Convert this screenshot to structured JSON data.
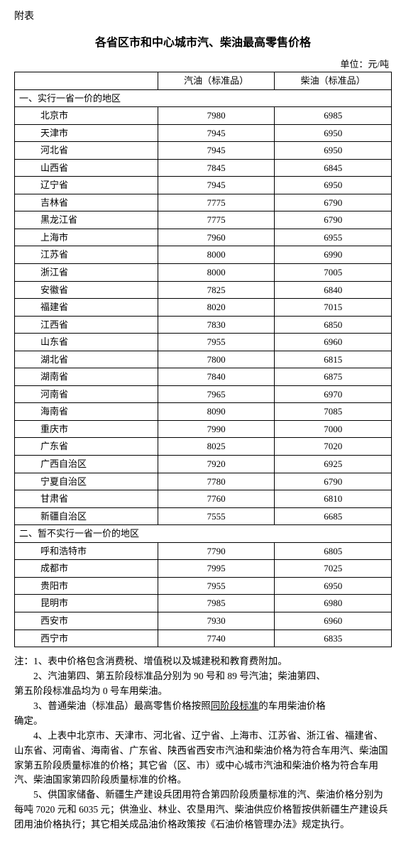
{
  "pre_title": "附表",
  "title": "各省区市和中心城市汽、柴油最高零售价格",
  "unit": "单位：元/吨",
  "columns": {
    "region": "",
    "gas": "汽油（标准品）",
    "diesel": "柴油（标准品）"
  },
  "section1": {
    "header": "一、实行一省一价的地区",
    "rows": [
      {
        "region": "北京市",
        "gas": "7980",
        "diesel": "6985"
      },
      {
        "region": "天津市",
        "gas": "7945",
        "diesel": "6950"
      },
      {
        "region": "河北省",
        "gas": "7945",
        "diesel": "6950"
      },
      {
        "region": "山西省",
        "gas": "7845",
        "diesel": "6845"
      },
      {
        "region": "辽宁省",
        "gas": "7945",
        "diesel": "6950"
      },
      {
        "region": "吉林省",
        "gas": "7775",
        "diesel": "6790"
      },
      {
        "region": "黑龙江省",
        "gas": "7775",
        "diesel": "6790"
      },
      {
        "region": "上海市",
        "gas": "7960",
        "diesel": "6955"
      },
      {
        "region": "江苏省",
        "gas": "8000",
        "diesel": "6990"
      },
      {
        "region": "浙江省",
        "gas": "8000",
        "diesel": "7005"
      },
      {
        "region": "安徽省",
        "gas": "7825",
        "diesel": "6840"
      },
      {
        "region": "福建省",
        "gas": "8020",
        "diesel": "7015"
      },
      {
        "region": "江西省",
        "gas": "7830",
        "diesel": "6850"
      },
      {
        "region": "山东省",
        "gas": "7955",
        "diesel": "6960"
      },
      {
        "region": "湖北省",
        "gas": "7800",
        "diesel": "6815"
      },
      {
        "region": "湖南省",
        "gas": "7840",
        "diesel": "6875"
      },
      {
        "region": "河南省",
        "gas": "7965",
        "diesel": "6970"
      },
      {
        "region": "海南省",
        "gas": "8090",
        "diesel": "7085"
      },
      {
        "region": "重庆市",
        "gas": "7990",
        "diesel": "7000"
      },
      {
        "region": "广东省",
        "gas": "8025",
        "diesel": "7020"
      },
      {
        "region": "广西自治区",
        "gas": "7920",
        "diesel": "6925"
      },
      {
        "region": "宁夏自治区",
        "gas": "7780",
        "diesel": "6790"
      },
      {
        "region": "甘肃省",
        "gas": "7760",
        "diesel": "6810"
      },
      {
        "region": "新疆自治区",
        "gas": "7555",
        "diesel": "6685"
      }
    ]
  },
  "section2": {
    "header": "二、暂不实行一省一价的地区",
    "rows": [
      {
        "region": "呼和浩特市",
        "gas": "7790",
        "diesel": "6805"
      },
      {
        "region": "成都市",
        "gas": "7995",
        "diesel": "7025"
      },
      {
        "region": "贵阳市",
        "gas": "7955",
        "diesel": "6950"
      },
      {
        "region": "昆明市",
        "gas": "7985",
        "diesel": "6980"
      },
      {
        "region": "西安市",
        "gas": "7930",
        "diesel": "6960"
      },
      {
        "region": "西宁市",
        "gas": "7740",
        "diesel": "6835"
      }
    ]
  },
  "notes": {
    "n1": "注：1、表中价格包含消费税、增值税以及城建税和教育费附加。",
    "n2": "2、汽油第四、第五阶段标准品分别为 90 号和 89 号汽油；柴油第四、",
    "n2b": "第五阶段标准品均为 0 号车用柴油。",
    "n3a": "3、普通柴油（标准品）最高零售价格按照",
    "n3u": "同阶段标准",
    "n3b": "的车用柴油价格",
    "n3c": "确定。",
    "n4": "4、上表中北京市、天津市、河北省、辽宁省、上海市、江苏省、浙江省、福建省、山东省、河南省、海南省、广东省、陕西省西安市汽油和柴油价格为符合车用汽、柴油国家第五阶段质量标准的价格；其它省（区、市）或中心城市汽油和柴油价格为符合车用汽、柴油国家第四阶段质量标准的价格。",
    "n5": "5、供国家储备、新疆生产建设兵团用符合第四阶段质量标准的汽、柴油价格分别为每吨 7020 元和 6035 元；供渔业、林业、农垦用汽、柴油供应价格暂按供新疆生产建设兵团用油价格执行；其它相关成品油价格政策按《石油价格管理办法》规定执行。"
  }
}
